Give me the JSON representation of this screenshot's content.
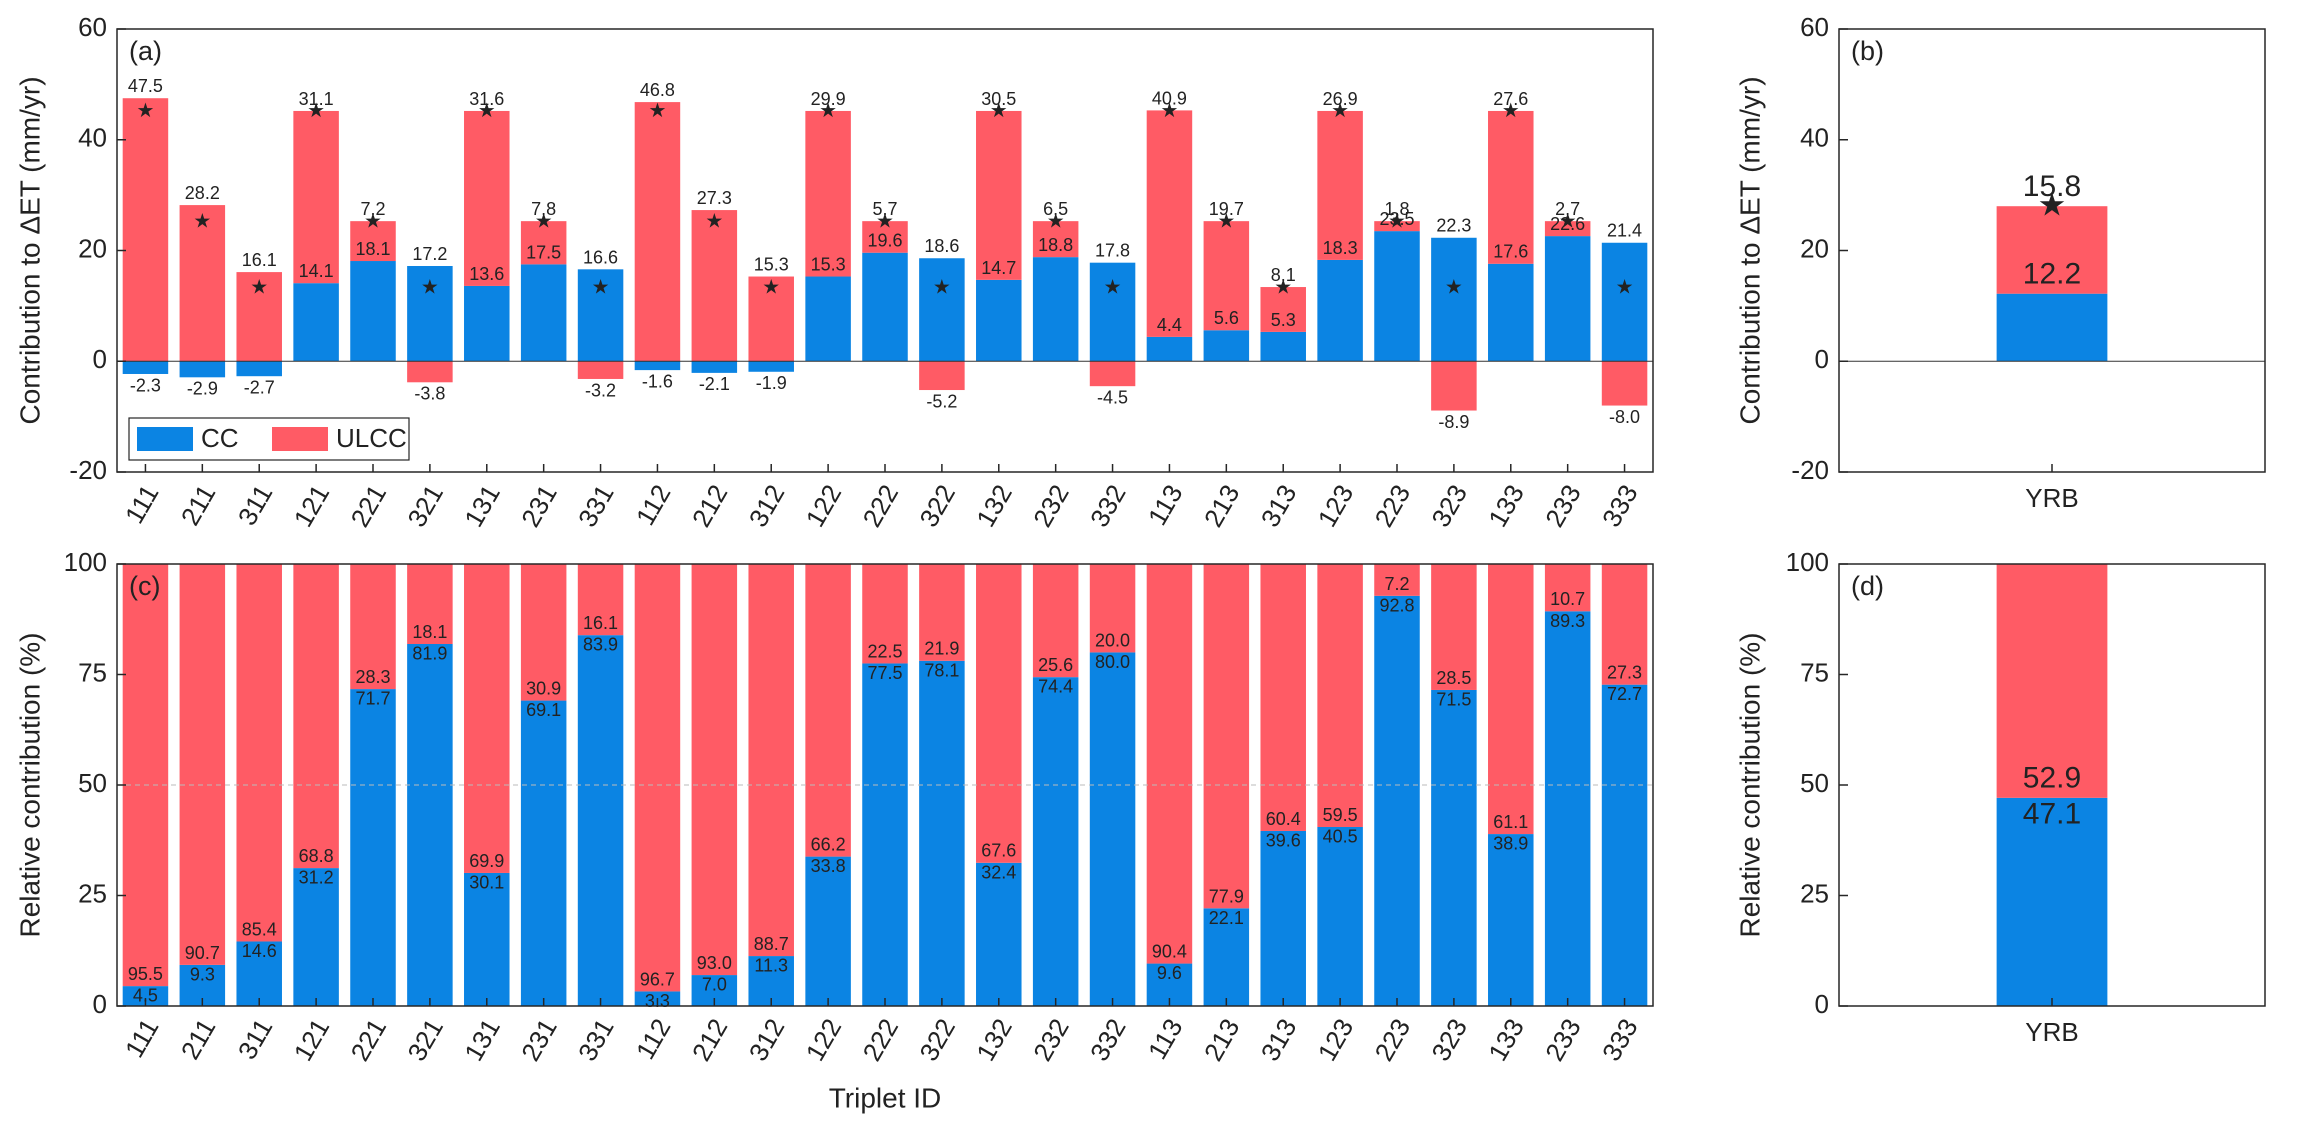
{
  "chart_data": [
    {
      "type": "bar",
      "stacked": true,
      "panel_label": "(a)",
      "y_label": "Contribution to ΔET (mm/yr)",
      "categories": [
        "111",
        "211",
        "311",
        "121",
        "221",
        "321",
        "131",
        "231",
        "331",
        "112",
        "212",
        "312",
        "122",
        "222",
        "322",
        "132",
        "232",
        "332",
        "113",
        "213",
        "313",
        "123",
        "223",
        "323",
        "133",
        "233",
        "333"
      ],
      "series": [
        {
          "name": "CC",
          "color": "#0b84e3",
          "values": [
            -2.3,
            -2.9,
            -2.7,
            14.1,
            18.1,
            17.2,
            13.6,
            17.5,
            16.6,
            -1.6,
            -2.1,
            -1.9,
            15.3,
            19.6,
            18.6,
            14.7,
            18.8,
            17.8,
            4.4,
            5.6,
            5.3,
            18.3,
            23.5,
            22.3,
            17.6,
            22.6,
            21.4
          ],
          "value_labels": [
            "-2.3",
            "-2.9",
            "-2.7",
            "14.1",
            "18.1",
            "17.2",
            "13.6",
            "17.5",
            "16.6",
            "-1.6",
            "-2.1",
            "-1.9",
            "15.3",
            "19.6",
            "18.6",
            "14.7",
            "18.8",
            "17.8",
            "4.4",
            "5.6",
            "5.3",
            "18.3",
            "23.5",
            "22.3",
            "17.6",
            "22.6",
            "21.4"
          ]
        },
        {
          "name": "ULCC",
          "color": "#ff5b65",
          "values": [
            47.5,
            28.2,
            16.1,
            31.1,
            7.2,
            -3.8,
            31.6,
            7.8,
            -3.2,
            46.8,
            27.3,
            15.3,
            29.9,
            5.7,
            -5.2,
            30.5,
            6.5,
            -4.5,
            40.9,
            19.7,
            8.1,
            26.9,
            1.8,
            -8.9,
            27.6,
            2.7,
            -8.0
          ],
          "value_labels": [
            "47.5",
            "28.2",
            "16.1",
            "31.1",
            "7.2",
            "-3.8",
            "31.6",
            "7.8",
            "-3.2",
            "46.8",
            "27.3",
            "15.3",
            "29.9",
            "5.7",
            "-5.2",
            "30.5",
            "6.5",
            "-4.5",
            "40.9",
            "19.7",
            "8.1",
            "26.9",
            "1.8",
            "-8.9",
            "27.6",
            "2.7",
            "-8.0"
          ]
        }
      ],
      "star_values": [
        45.2,
        25.3,
        13.4,
        45.2,
        25.3,
        13.4,
        45.2,
        25.3,
        13.4,
        45.2,
        25.3,
        13.4,
        45.2,
        25.3,
        13.4,
        45.2,
        25.3,
        13.4,
        45.2,
        25.3,
        13.4,
        45.2,
        25.3,
        13.4,
        45.2,
        25.3,
        13.4
      ],
      "ylim": [
        -20,
        60
      ],
      "yticks": [
        -20,
        0,
        20,
        40,
        60
      ],
      "legend": "lower left"
    },
    {
      "type": "bar",
      "stacked": true,
      "panel_label": "(b)",
      "y_label": "Contribution to ΔET (mm/yr)",
      "categories": [
        "YRB"
      ],
      "series": [
        {
          "color": "#0b84e3",
          "values": [
            12.2
          ]
        },
        {
          "color": "#ff5b65",
          "values": [
            15.8
          ]
        }
      ],
      "star_values": [
        28.0
      ],
      "ylim": [
        -20,
        60
      ],
      "yticks": [
        -20,
        0,
        20,
        40,
        60
      ]
    },
    {
      "type": "bar",
      "stacked": true,
      "panel_label": "(c)",
      "y_label": "Relative contribution (%)",
      "x_label": "Triplet ID",
      "categories": [
        "111",
        "211",
        "311",
        "121",
        "221",
        "321",
        "131",
        "231",
        "331",
        "112",
        "212",
        "312",
        "122",
        "222",
        "322",
        "132",
        "232",
        "332",
        "113",
        "213",
        "313",
        "123",
        "223",
        "323",
        "133",
        "233",
        "333"
      ],
      "series": [
        {
          "color": "#0b84e3",
          "values": [
            4.5,
            9.3,
            14.6,
            31.2,
            71.7,
            81.9,
            30.1,
            69.1,
            83.9,
            3.3,
            7.0,
            11.3,
            33.8,
            77.5,
            78.1,
            32.4,
            74.4,
            80.0,
            9.6,
            22.1,
            39.6,
            40.5,
            92.8,
            71.5,
            38.9,
            89.3,
            72.7
          ],
          "value_labels": [
            "4.5",
            "9.3",
            "14.6",
            "31.2",
            "71.7",
            "81.9",
            "30.1",
            "69.1",
            "83.9",
            "3.3",
            "7.0",
            "11.3",
            "33.8",
            "77.5",
            "78.1",
            "32.4",
            "74.4",
            "80.0",
            "9.6",
            "22.1",
            "39.6",
            "40.5",
            "92.8",
            "71.5",
            "38.9",
            "89.3",
            "72.7"
          ]
        },
        {
          "color": "#ff5b65",
          "values": [
            95.5,
            90.7,
            85.4,
            68.8,
            28.3,
            18.1,
            69.9,
            30.9,
            16.1,
            96.7,
            93.0,
            88.7,
            66.2,
            22.5,
            21.9,
            67.6,
            25.6,
            20.0,
            90.4,
            77.9,
            60.4,
            59.5,
            7.2,
            28.5,
            61.1,
            10.7,
            27.3
          ],
          "value_labels": [
            "95.5",
            "90.7",
            "85.4",
            "68.8",
            "28.3",
            "18.1",
            "69.9",
            "30.9",
            "16.1",
            "96.7",
            "93.0",
            "88.7",
            "66.2",
            "22.5",
            "21.9",
            "67.6",
            "25.6",
            "20.0",
            "90.4",
            "77.9",
            "60.4",
            "59.5",
            "7.2",
            "28.5",
            "61.1",
            "10.7",
            "27.3"
          ]
        }
      ],
      "ylim": [
        0,
        100
      ],
      "yticks": [
        0,
        25,
        50,
        75,
        100
      ],
      "reference_line": 50
    },
    {
      "type": "bar",
      "stacked": true,
      "panel_label": "(d)",
      "y_label": "Relative contribution (%)",
      "categories": [
        "YRB"
      ],
      "series": [
        {
          "color": "#0b84e3",
          "values": [
            47.1
          ]
        },
        {
          "color": "#ff5b65",
          "values": [
            52.9
          ]
        }
      ],
      "ylim": [
        0,
        100
      ],
      "yticks": [
        0,
        25,
        50,
        75,
        100
      ]
    }
  ]
}
